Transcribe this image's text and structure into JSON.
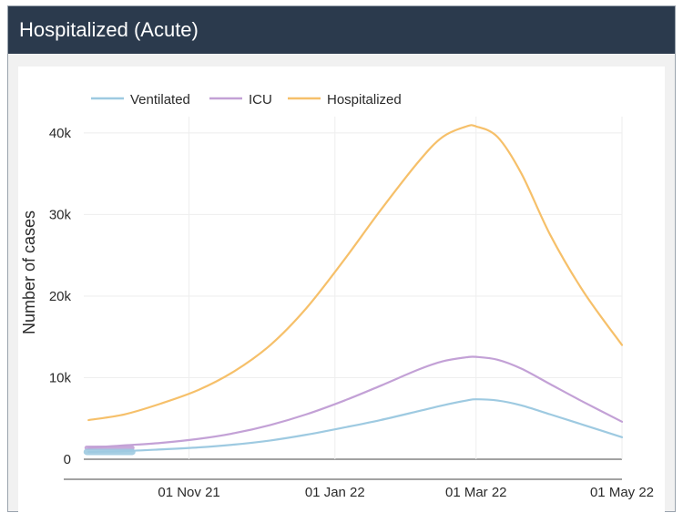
{
  "header": {
    "title": "Hospitalized (Acute)"
  },
  "chart_data": {
    "type": "line",
    "ylabel": "Number of cases",
    "xlabel": "",
    "ylim": [
      0,
      42000
    ],
    "xlim": [
      "2021-09-18",
      "2022-05-01"
    ],
    "yticks": [
      0,
      10000,
      20000,
      30000,
      40000
    ],
    "ytick_labels": [
      "0",
      "10k",
      "20k",
      "30k",
      "40k"
    ],
    "xticks": [
      "2021-11-01",
      "2022-01-01",
      "2022-03-01",
      "2022-05-01"
    ],
    "xtick_labels": [
      "01 Nov 21",
      "01 Jan 22",
      "01 Mar 22",
      "01 May 22"
    ],
    "grid": true,
    "legend_position": "top",
    "x": [
      "2021-09-20",
      "2021-10-05",
      "2021-10-20",
      "2021-11-05",
      "2021-11-20",
      "2021-12-05",
      "2021-12-20",
      "2022-01-05",
      "2022-01-20",
      "2022-02-05",
      "2022-02-15",
      "2022-02-25",
      "2022-03-01",
      "2022-03-10",
      "2022-03-20",
      "2022-04-01",
      "2022-04-15",
      "2022-05-01"
    ],
    "series": [
      {
        "name": "Ventilated",
        "color": "#9ecae1",
        "values": [
          900,
          1000,
          1200,
          1450,
          1800,
          2300,
          3000,
          3900,
          4800,
          5900,
          6600,
          7200,
          7350,
          7200,
          6600,
          5500,
          4200,
          2700
        ]
      },
      {
        "name": "ICU",
        "color": "#c3a1d6",
        "values": [
          1400,
          1700,
          2000,
          2500,
          3200,
          4200,
          5500,
          7200,
          9000,
          11000,
          12000,
          12500,
          12550,
          12200,
          11100,
          9200,
          7000,
          4600
        ]
      },
      {
        "name": "Hospitalized",
        "color": "#f6c06a",
        "values": [
          4800,
          5500,
          6800,
          8500,
          10800,
          14000,
          18500,
          24500,
          30500,
          36500,
          39500,
          40800,
          40800,
          39500,
          35000,
          27500,
          20500,
          14000
        ]
      }
    ]
  }
}
